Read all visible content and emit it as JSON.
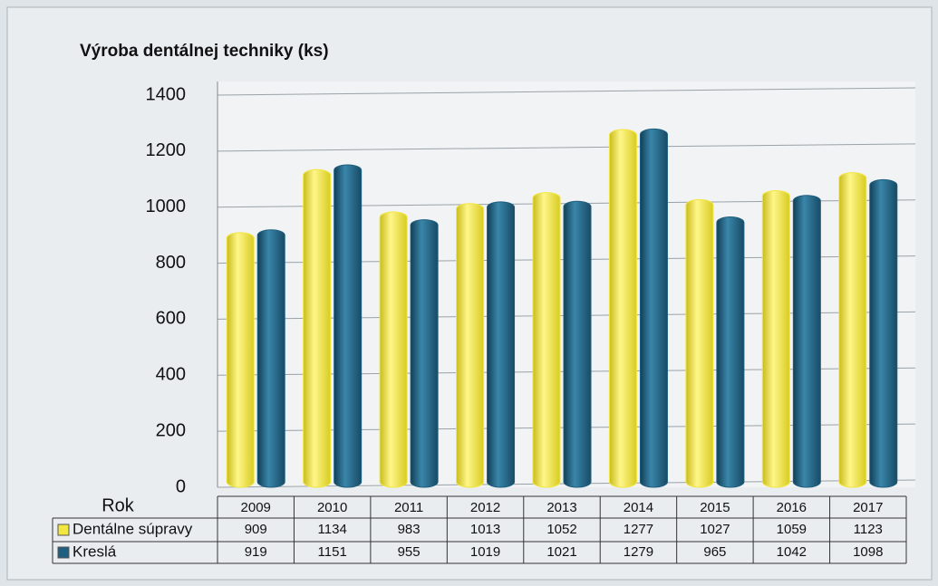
{
  "chart_data": {
    "type": "bar",
    "title": "Výroba dentálnej techniky (ks)",
    "xlabel": "Rok",
    "categories": [
      "2009",
      "2010",
      "2011",
      "2012",
      "2013",
      "2014",
      "2015",
      "2016",
      "2017"
    ],
    "series": [
      {
        "name": "Dentálne súpravy",
        "color": "#f2e640",
        "values": [
          909,
          1134,
          983,
          1013,
          1052,
          1277,
          1027,
          1059,
          1123
        ]
      },
      {
        "name": "Kreslá",
        "color": "#1e5e7e",
        "values": [
          919,
          1151,
          955,
          1019,
          1021,
          1279,
          965,
          1042,
          1098
        ]
      }
    ],
    "ylim": [
      0,
      1400
    ],
    "yticks": [
      0,
      200,
      400,
      600,
      800,
      1000,
      1200,
      1400
    ],
    "grid": true
  }
}
